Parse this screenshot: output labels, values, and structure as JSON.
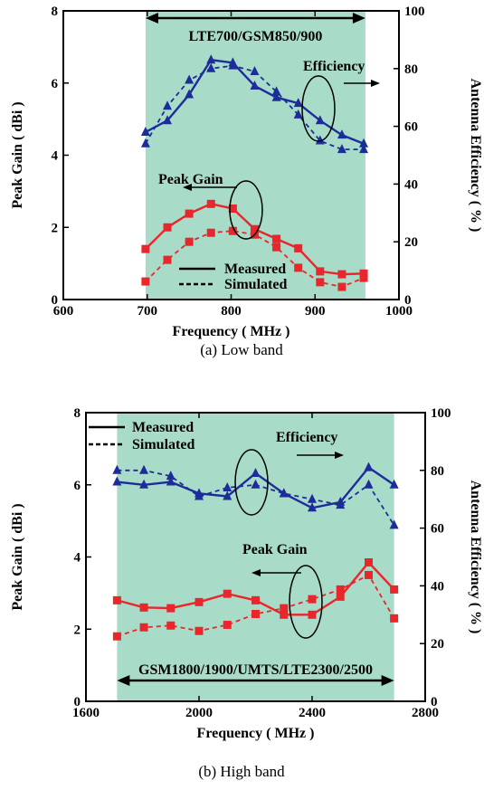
{
  "chart_data": [
    {
      "type": "line",
      "caption": "(a) Low band",
      "xlabel": "Frequency ( MHz )",
      "ylabel_left": "Peak Gain  ( dBi )",
      "ylabel_right": "Antenna Efficiency  ( % )",
      "xlim": [
        600,
        1000
      ],
      "ylim_left": [
        0,
        8
      ],
      "ylim_right": [
        0,
        100
      ],
      "xticks": [
        "600",
        "700",
        "800",
        "900",
        "1000"
      ],
      "yticks_left": [
        "0",
        "2",
        "4",
        "6",
        "8"
      ],
      "yticks_right": [
        "0",
        "20",
        "40",
        "60",
        "80",
        "100"
      ],
      "band": {
        "x0": 698,
        "x1": 960,
        "label": "LTE700/GSM850/900",
        "color": "#a9dcc8"
      },
      "legend": {
        "measured": "Measured",
        "simulated": "Simulated"
      },
      "annotations": {
        "efficiency": "Efficiency",
        "peak_gain": "Peak Gain"
      },
      "series": [
        {
          "name": "Measured",
          "quantity": "efficiency",
          "axis": "right",
          "style": "solid",
          "marker": "triangle",
          "color": "#1c2d9a",
          "x": [
            698,
            724,
            750,
            776,
            802,
            828,
            854,
            880,
            906,
            932,
            958
          ],
          "y": [
            58,
            62,
            71,
            83,
            82,
            74,
            70,
            68,
            62,
            57,
            54
          ]
        },
        {
          "name": "Simulated",
          "quantity": "efficiency",
          "axis": "right",
          "style": "dashed",
          "marker": "triangle",
          "color": "#1c2d9a",
          "x": [
            698,
            724,
            750,
            776,
            802,
            828,
            854,
            880,
            906,
            932,
            958
          ],
          "y": [
            54,
            67,
            76,
            80,
            81,
            79,
            72,
            64,
            55,
            52,
            52
          ]
        },
        {
          "name": "Measured",
          "quantity": "peak_gain",
          "axis": "left",
          "style": "solid",
          "marker": "square",
          "color": "#e8262b",
          "x": [
            698,
            724,
            750,
            776,
            802,
            828,
            854,
            880,
            906,
            932,
            958
          ],
          "y": [
            1.4,
            2.0,
            2.38,
            2.65,
            2.52,
            1.95,
            1.68,
            1.42,
            0.78,
            0.7,
            0.72
          ]
        },
        {
          "name": "Simulated",
          "quantity": "peak_gain",
          "axis": "left",
          "style": "dashed",
          "marker": "square",
          "color": "#e8262b",
          "x": [
            698,
            724,
            750,
            776,
            802,
            828,
            854,
            880,
            906,
            932,
            958
          ],
          "y": [
            0.5,
            1.1,
            1.6,
            1.85,
            1.9,
            1.8,
            1.45,
            0.88,
            0.48,
            0.35,
            0.6
          ]
        }
      ]
    },
    {
      "type": "line",
      "caption": "(b) High band",
      "xlabel": "Frequency ( MHz )",
      "ylabel_left": "Peak Gain  ( dBi )",
      "ylabel_right": "Antenna Efficiency  ( % )",
      "xlim": [
        1600,
        2800
      ],
      "ylim_left": [
        0,
        8
      ],
      "ylim_right": [
        0,
        100
      ],
      "xticks": [
        "1600",
        "2000",
        "2400",
        "2800"
      ],
      "yticks_left": [
        "0",
        "2",
        "4",
        "6",
        "8"
      ],
      "yticks_right": [
        "0",
        "20",
        "40",
        "60",
        "80",
        "100"
      ],
      "band": {
        "x0": 1710,
        "x1": 2690,
        "label": "GSM1800/1900/UMTS/LTE2300/2500",
        "color": "#a9dcc8"
      },
      "legend": {
        "measured": "Measured",
        "simulated": "Simulated"
      },
      "annotations": {
        "efficiency": "Efficiency",
        "peak_gain": "Peak Gain"
      },
      "series": [
        {
          "name": "Measured",
          "quantity": "efficiency",
          "axis": "right",
          "style": "solid",
          "marker": "triangle",
          "color": "#1c2d9a",
          "x": [
            1710,
            1805,
            1900,
            2000,
            2100,
            2200,
            2300,
            2400,
            2500,
            2600,
            2690
          ],
          "y": [
            76,
            75,
            76,
            72,
            71,
            79,
            72,
            67,
            69,
            81,
            75
          ]
        },
        {
          "name": "Simulated",
          "quantity": "efficiency",
          "axis": "right",
          "style": "dashed",
          "marker": "triangle",
          "color": "#1c2d9a",
          "x": [
            1710,
            1805,
            1900,
            2000,
            2100,
            2200,
            2300,
            2400,
            2500,
            2600,
            2690
          ],
          "y": [
            80,
            80,
            78,
            71,
            74,
            75,
            72,
            70,
            68,
            75,
            61
          ]
        },
        {
          "name": "Measured",
          "quantity": "peak_gain",
          "axis": "left",
          "style": "solid",
          "marker": "square",
          "color": "#e8262b",
          "x": [
            1710,
            1805,
            1900,
            2000,
            2100,
            2200,
            2300,
            2400,
            2500,
            2600,
            2690
          ],
          "y": [
            2.8,
            2.6,
            2.58,
            2.75,
            2.98,
            2.8,
            2.4,
            2.4,
            2.9,
            3.85,
            3.1
          ]
        },
        {
          "name": "Simulated",
          "quantity": "peak_gain",
          "axis": "left",
          "style": "dashed",
          "marker": "square",
          "color": "#e8262b",
          "x": [
            1710,
            1805,
            1900,
            2000,
            2100,
            2200,
            2300,
            2400,
            2500,
            2600,
            2690
          ],
          "y": [
            1.8,
            2.05,
            2.1,
            1.95,
            2.12,
            2.42,
            2.58,
            2.83,
            3.1,
            3.5,
            2.3
          ]
        }
      ]
    }
  ]
}
